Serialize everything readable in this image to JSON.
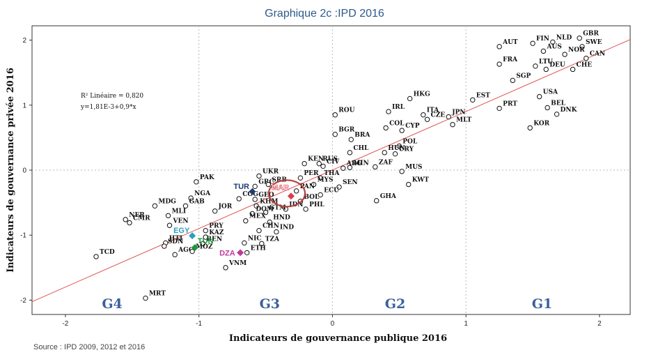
{
  "title": "Graphique 2c :IPD 2016",
  "source": "Source : IPD 2009, 2012 et 2016",
  "chart_data": {
    "type": "scatter",
    "xlabel": "Indicateurs de gouvernance publique 2016",
    "ylabel": "Indicateurs de gouvernance privée 2016",
    "xlim": [
      -2.25,
      2.23
    ],
    "ylim": [
      -2.22,
      2.22
    ],
    "xticks": [
      "-2",
      "-1",
      "0",
      "1",
      "2"
    ],
    "yticks": [
      "-2",
      "-1",
      "0",
      "1",
      "2"
    ],
    "regression": {
      "line1": "R² Linéaire = 0,820",
      "line2": "y=1,81E-3+0,9*x",
      "intercept": 0.0018,
      "slope": 0.9
    },
    "groups": [
      "G4",
      "G3",
      "G2",
      "G1"
    ],
    "group_centers": [
      -1.65,
      -0.47,
      0.47,
      1.57
    ],
    "reference_lines_x": [
      -1,
      0,
      1
    ],
    "reference_line_y": 0,
    "points": [
      {
        "code": "AUT",
        "x": 1.25,
        "y": 1.9
      },
      {
        "code": "FIN",
        "x": 1.5,
        "y": 1.95
      },
      {
        "code": "NLD",
        "x": 1.65,
        "y": 1.97
      },
      {
        "code": "GBR",
        "x": 1.85,
        "y": 2.03
      },
      {
        "code": "SWE",
        "x": 1.87,
        "y": 1.9
      },
      {
        "code": "AUS",
        "x": 1.58,
        "y": 1.83
      },
      {
        "code": "NOR",
        "x": 1.74,
        "y": 1.78
      },
      {
        "code": "CAN",
        "x": 1.9,
        "y": 1.72
      },
      {
        "code": "FRA",
        "x": 1.25,
        "y": 1.63
      },
      {
        "code": "LTU",
        "x": 1.52,
        "y": 1.6
      },
      {
        "code": "DEU",
        "x": 1.6,
        "y": 1.55
      },
      {
        "code": "CHE",
        "x": 1.8,
        "y": 1.55
      },
      {
        "code": "SGP",
        "x": 1.35,
        "y": 1.38
      },
      {
        "code": "EST",
        "x": 1.05,
        "y": 1.08
      },
      {
        "code": "USA",
        "x": 1.55,
        "y": 1.13
      },
      {
        "code": "PRT",
        "x": 1.25,
        "y": 0.95
      },
      {
        "code": "BEL",
        "x": 1.61,
        "y": 0.96
      },
      {
        "code": "DNK",
        "x": 1.68,
        "y": 0.86
      },
      {
        "code": "KOR",
        "x": 1.48,
        "y": 0.65
      },
      {
        "code": "HKG",
        "x": 0.58,
        "y": 1.1
      },
      {
        "code": "ROU",
        "x": 0.02,
        "y": 0.85
      },
      {
        "code": "IRL",
        "x": 0.42,
        "y": 0.9
      },
      {
        "code": "ITA",
        "x": 0.68,
        "y": 0.85
      },
      {
        "code": "JPN",
        "x": 0.87,
        "y": 0.82
      },
      {
        "code": "MLT",
        "x": 0.9,
        "y": 0.7
      },
      {
        "code": "COL",
        "x": 0.4,
        "y": 0.65
      },
      {
        "code": "CYP",
        "x": 0.52,
        "y": 0.61
      },
      {
        "code": "CZE",
        "x": 0.71,
        "y": 0.78
      },
      {
        "code": "BGR",
        "x": 0.02,
        "y": 0.55
      },
      {
        "code": "BRA",
        "x": 0.14,
        "y": 0.47
      },
      {
        "code": "POL",
        "x": 0.5,
        "y": 0.37
      },
      {
        "code": "CHL",
        "x": 0.13,
        "y": 0.27
      },
      {
        "code": "HUN",
        "x": 0.39,
        "y": 0.27
      },
      {
        "code": "URY",
        "x": 0.47,
        "y": 0.25
      },
      {
        "code": "ZAF",
        "x": 0.32,
        "y": 0.05
      },
      {
        "code": "MUS",
        "x": 0.52,
        "y": -0.02
      },
      {
        "code": "KWT",
        "x": 0.57,
        "y": -0.22
      },
      {
        "code": "KEN",
        "x": -0.21,
        "y": 0.1
      },
      {
        "code": "RUS",
        "x": -0.1,
        "y": 0.1
      },
      {
        "code": "CIV",
        "x": -0.07,
        "y": 0.06
      },
      {
        "code": "ARG",
        "x": 0.08,
        "y": 0.03
      },
      {
        "code": "MIN",
        "x": 0.13,
        "y": 0.04
      },
      {
        "code": "UKR",
        "x": -0.55,
        "y": -0.09
      },
      {
        "code": "PER",
        "x": -0.24,
        "y": -0.12
      },
      {
        "code": "THA",
        "x": -0.09,
        "y": -0.12
      },
      {
        "code": "SEN",
        "x": 0.05,
        "y": -0.26
      },
      {
        "code": "MYS",
        "x": -0.14,
        "y": -0.22
      },
      {
        "code": "GHA",
        "x": 0.33,
        "y": -0.47
      },
      {
        "code": "ECU",
        "x": -0.09,
        "y": -0.38
      },
      {
        "code": "PAN",
        "x": -0.27,
        "y": -0.32
      },
      {
        "code": "BOL",
        "x": -0.24,
        "y": -0.48
      },
      {
        "code": "IDN",
        "x": -0.35,
        "y": -0.6
      },
      {
        "code": "PHL",
        "x": -0.2,
        "y": -0.6
      },
      {
        "code": "GRC",
        "x": -0.58,
        "y": -0.25
      },
      {
        "code": "GEO",
        "x": -0.58,
        "y": -0.45
      },
      {
        "code": "KHM",
        "x": -0.57,
        "y": -0.55
      },
      {
        "code": "SRB",
        "x": -0.48,
        "y": -0.22
      },
      {
        "code": "GTM",
        "x": -0.5,
        "y": -0.65
      },
      {
        "code": "HND",
        "x": -0.47,
        "y": -0.8
      },
      {
        "code": "DOM",
        "x": -0.6,
        "y": -0.67
      },
      {
        "code": "MEX",
        "x": -0.65,
        "y": -0.78
      },
      {
        "code": "CHN",
        "x": -0.55,
        "y": -0.93
      },
      {
        "code": "IND",
        "x": -0.42,
        "y": -0.95
      },
      {
        "code": "NIC",
        "x": -0.66,
        "y": -1.12
      },
      {
        "code": "TZA",
        "x": -0.53,
        "y": -1.13
      },
      {
        "code": "ETH",
        "x": -0.64,
        "y": -1.27
      },
      {
        "code": "VNM",
        "x": -0.8,
        "y": -1.5
      },
      {
        "code": "COG",
        "x": -0.7,
        "y": -0.44
      },
      {
        "code": "JOR",
        "x": -0.88,
        "y": -0.63
      },
      {
        "code": "PRY",
        "x": -0.95,
        "y": -0.93
      },
      {
        "code": "KAZ",
        "x": -0.95,
        "y": -1.03
      },
      {
        "code": "BEN",
        "x": -0.97,
        "y": -1.13
      },
      {
        "code": "PAK",
        "x": -1.02,
        "y": -0.18
      },
      {
        "code": "NGA",
        "x": -1.06,
        "y": -0.43
      },
      {
        "code": "GAB",
        "x": -1.1,
        "y": -0.55
      },
      {
        "code": "MDG",
        "x": -1.33,
        "y": -0.55
      },
      {
        "code": "MLI",
        "x": -1.23,
        "y": -0.7
      },
      {
        "code": "VEN",
        "x": -1.22,
        "y": -0.85
      },
      {
        "code": "NER",
        "x": -1.55,
        "y": -0.76
      },
      {
        "code": "CMR",
        "x": -1.52,
        "y": -0.81
      },
      {
        "code": "HTI",
        "x": -1.25,
        "y": -1.12
      },
      {
        "code": "SDN",
        "x": -1.26,
        "y": -1.17
      },
      {
        "code": "AGO",
        "x": -1.18,
        "y": -1.3
      },
      {
        "code": "MOZ",
        "x": -1.05,
        "y": -1.25
      },
      {
        "code": "TCD",
        "x": -1.77,
        "y": -1.33
      },
      {
        "code": "MRT",
        "x": -1.4,
        "y": -1.97
      }
    ],
    "highlighted": [
      {
        "code": "TUR",
        "x": -0.6,
        "y": -0.33,
        "color": "#1f3b73"
      },
      {
        "code": "MAR",
        "x": -0.31,
        "y": -0.4,
        "color": "#e03b4a"
      },
      {
        "code": "EGY",
        "x": -1.05,
        "y": -1.01,
        "color": "#2a9fc0"
      },
      {
        "code": "TUN",
        "x": -1.03,
        "y": -1.19,
        "color": "#1a9a3a"
      },
      {
        "code": "DZA",
        "x": -0.69,
        "y": -1.27,
        "color": "#c0399a"
      }
    ],
    "highlight_circle": "MAR",
    "colors": {
      "axis": "#333333",
      "grid": "#b8b8b8",
      "fit": "#e25050",
      "group_label": "#3b5f9b",
      "circle": "#b8403a"
    }
  }
}
